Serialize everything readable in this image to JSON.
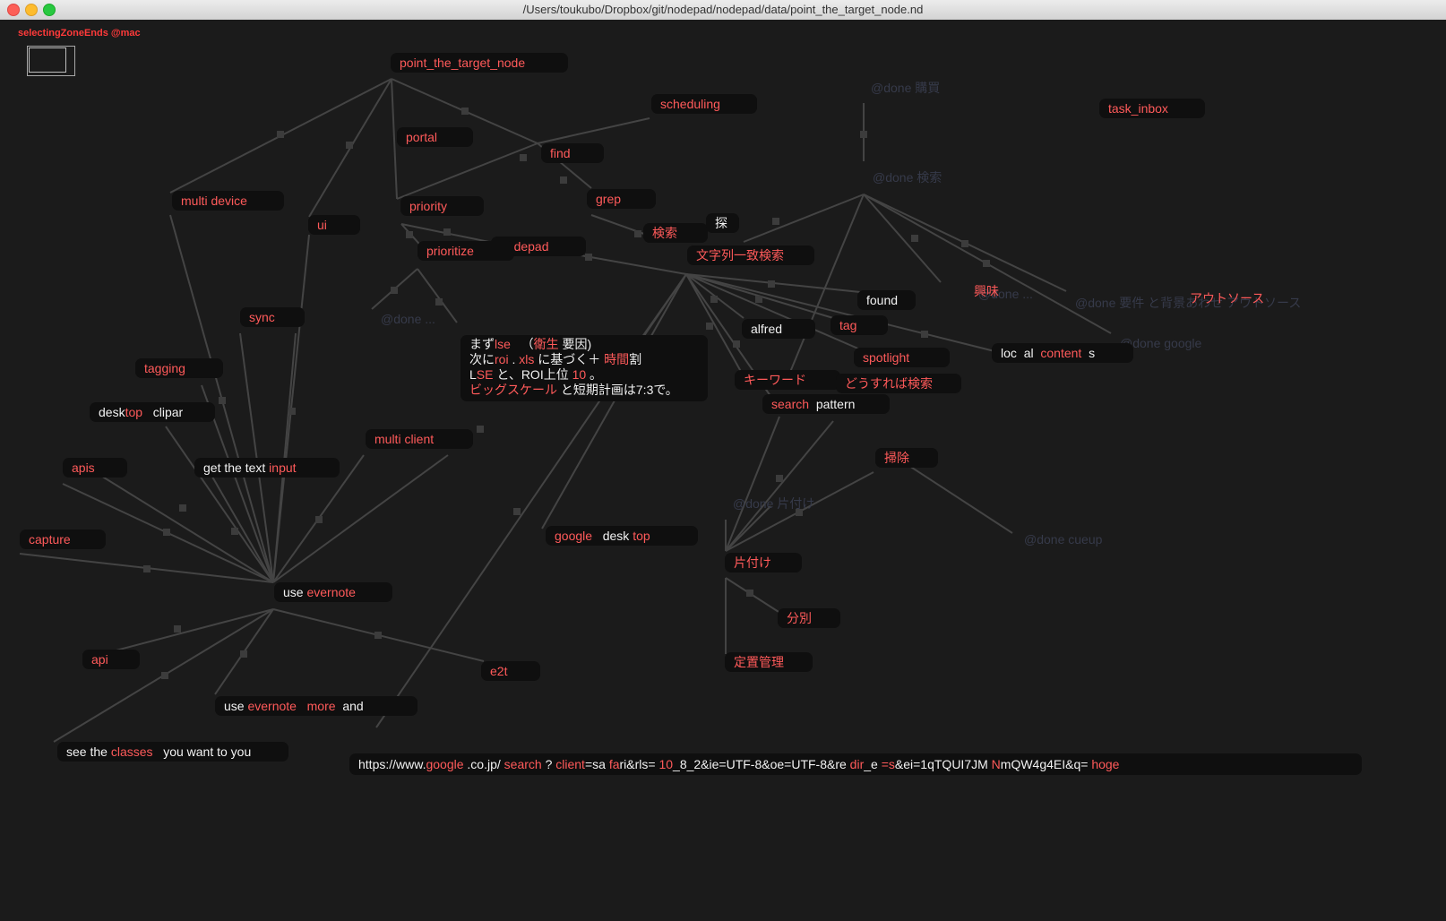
{
  "window": {
    "title": "/Users/toukubo/Dropbox/git/nodepad/nodepad/data/point_the_target_node.nd"
  },
  "status": "selectingZoneEnds @mac",
  "colors": {
    "background": "#1b1b1b",
    "node_fill": "#0f0f0f",
    "label_red": "#ff5a5a",
    "label_white": "#f2f2f2",
    "ghost": "#363a4a",
    "edge": "#444444"
  },
  "nodes": {
    "point_the_target_node": "point_the_target_node",
    "scheduling": "scheduling",
    "task_inbox": "task_inbox",
    "portal": "portal",
    "find": "find",
    "multi_device": "multi device",
    "ui": "ui",
    "priority": "priority",
    "grep": "grep",
    "kensaku": "検索",
    "sagasu": "探",
    "prioritize": "prioritize",
    "nodepad": "nodepad",
    "mojiretsu": "文字列一致検索",
    "found": "found",
    "kyoumi": "興味",
    "outsource": "アウトソース",
    "sync": "sync",
    "alfred": "alfred",
    "tag": "tag",
    "spotlight": "spotlight",
    "loc_a": "loc",
    "loc_b": "al",
    "loc_c": "content",
    "loc_d": "s",
    "tagging": "tagging",
    "keyword": "キーワード",
    "dousureba": "どうすれば検索",
    "search_a": "search",
    "search_b": "pattern",
    "desktop_a": "desk",
    "desktop_b": "top",
    "desktop_c": "clipar",
    "multi_client": "multi client",
    "souji": "掃除",
    "apis": "apis",
    "gettext_a": "get the text",
    "gettext_b": "input",
    "capture": "capture",
    "googledesk_a": "google",
    "googledesk_b": "desk",
    "googledesk_c": "top",
    "katazuke": "片付け",
    "useevernote_a": "use",
    "useevernote_b": "evernote",
    "bunbetsu": "分別",
    "api": "api",
    "e2t": "e2t",
    "teichi": "定置管理",
    "more_a": "use",
    "more_b": "evernote",
    "more_c": "more",
    "more_d": "and",
    "classes_a": "see the",
    "classes_b": "classes",
    "classes_c": "you want to you"
  },
  "ghosts": {
    "done_kounyu": "@done    購買",
    "done_kensaku": "@done    検索",
    "done_mid": "@done    ...",
    "done_ext": "@done    ...",
    "done_youken": "@done    要件 と背景あわせ    アウトソース",
    "done_google": "@done    google",
    "done_katazuke": "@done    片付け",
    "done_cueup": "@done    cueup"
  },
  "multi": {
    "l1a": "まず",
    "l1b": "lse",
    "l1c": "（",
    "l1d": "衛生",
    "l1e": " 要因)",
    "l2a": "次に",
    "l2b": "roi",
    "l2c": " . ",
    "l2d": "xls",
    "l2e": " に基づく＋ ",
    "l2f": "時間",
    "l2g": "割",
    "l3a": "L",
    "l3b": "SE",
    "l3c": " と、ROI上位 ",
    "l3d": "10",
    "l3e": " 。",
    "l4a": "ビッグスケール",
    "l4b": " と短期計画は7:3で。"
  },
  "url": {
    "p1": "https://www.",
    "p2": "google",
    "p3": " .co.jp/ ",
    "p4": "search",
    "p5": " ? ",
    "p6": "client",
    "p7": "=sa   ",
    "p8": "fa",
    "p9": "ri&rls=    ",
    "p10": "10",
    "p11": "_8_2&ie=UTF-8&oe=UTF-8&re     ",
    "p12": "dir",
    "p13": "_e     ",
    "p14": "=s",
    "p15": "&ei=1qTQUI7JM      ",
    "p16": "N",
    "p17": "mQW4g4EI&q=        ",
    "p18": "hoge"
  }
}
